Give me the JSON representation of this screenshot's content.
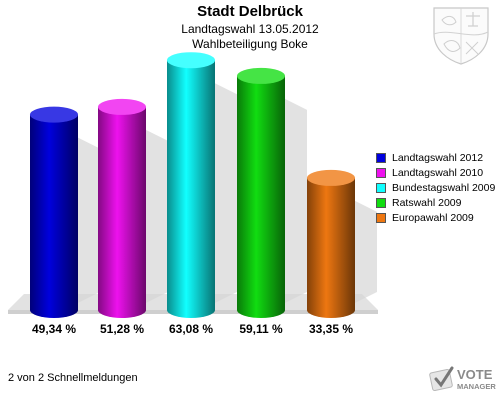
{
  "header": {
    "title": "Stadt Delbrück",
    "subtitle1": "Landtagswahl 13.05.2012",
    "subtitle2": "Wahlbeteiligung Boke"
  },
  "chart_data": {
    "type": "bar",
    "title": "Stadt Delbrück",
    "subtitle": [
      "Landtagswahl 13.05.2012",
      "Wahlbeteiligung Boke"
    ],
    "categories": [
      "Landtagswahl 2012",
      "Landtagswahl 2010",
      "Bundestagswahl 2009",
      "Ratswahl 2009",
      "Europawahl 2009"
    ],
    "values": [
      49.34,
      51.28,
      63.08,
      59.11,
      33.35
    ],
    "labels": [
      "49,34 %",
      "51,28 %",
      "63,08 %",
      "59,11 %",
      "33,35 %"
    ],
    "colors": [
      "#0000dd",
      "#ee11ee",
      "#11ffff",
      "#11dd11",
      "#ee7711"
    ],
    "ylim": [
      0,
      70
    ],
    "legend_position": "right",
    "grid": false,
    "bar_style": "3d-cylinder"
  },
  "legend": {
    "items": [
      {
        "label": "Landtagswahl 2012",
        "color": "#0000dd"
      },
      {
        "label": "Landtagswahl 2010",
        "color": "#ee11ee"
      },
      {
        "label": "Bundestagswahl 2009",
        "color": "#11ffff"
      },
      {
        "label": "Ratswahl 2009",
        "color": "#11dd11"
      },
      {
        "label": "Europawahl 2009",
        "color": "#ee7711"
      }
    ]
  },
  "footer": {
    "text": "2 von 2 Schnellmeldungen"
  },
  "brand": {
    "line1": "VOTE",
    "line2": "MANAGER",
    "icon": "vote-check-icon"
  },
  "crest": {
    "icon": "coat-of-arms-icon"
  }
}
